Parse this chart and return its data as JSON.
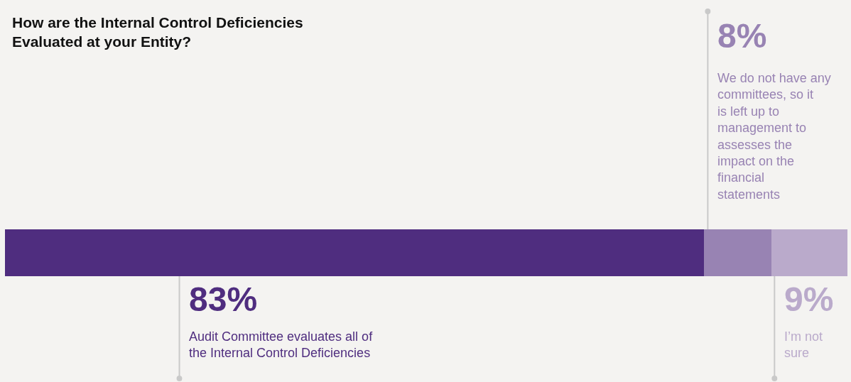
{
  "chart_data": {
    "type": "bar",
    "orientation": "horizontal",
    "stacked": true,
    "title": "How are the Internal Control Deficiencies Evaluated at your Entity?",
    "categories": [
      null
    ],
    "xlim": [
      0,
      100
    ],
    "tick_labels": false,
    "grid": false,
    "legend": false,
    "series": [
      {
        "name": "Audit Committee evaluates all of the Internal Control Deficiencies",
        "color": "#4f2d7f",
        "values": [
          83
        ],
        "value_labels": [
          "83%"
        ]
      },
      {
        "name": "We do not have any committees, so it is left up to management to assesses the impact on the financial statements",
        "color": "#9883b3",
        "values": [
          8
        ],
        "value_labels": [
          "8%"
        ]
      },
      {
        "name": "I’m not sure",
        "color": "#baaacb",
        "values": [
          9
        ],
        "value_labels": [
          "9%"
        ]
      }
    ]
  }
}
